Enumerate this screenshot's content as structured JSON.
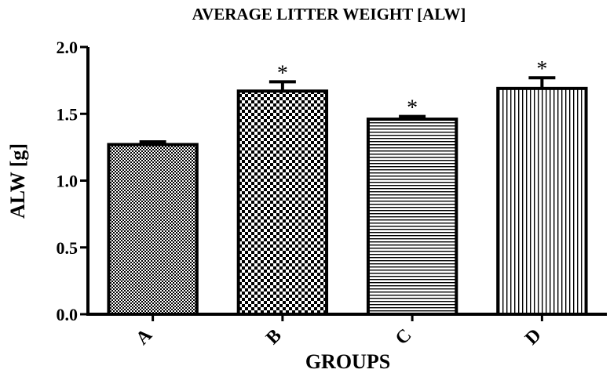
{
  "chart_data": {
    "type": "bar",
    "title": "AVERAGE LITTER WEIGHT [ALW]",
    "xlabel": "GROUPS",
    "ylabel": "ALW [g]",
    "categories": [
      "A",
      "B",
      "C",
      "D"
    ],
    "values": [
      1.27,
      1.67,
      1.46,
      1.69
    ],
    "error": [
      0.02,
      0.07,
      0.02,
      0.08
    ],
    "annotations": [
      "",
      "*",
      "*",
      "*"
    ],
    "patterns": [
      "fine-checker",
      "checker",
      "horizontal-lines",
      "vertical-lines"
    ],
    "ylim": [
      0,
      2.0
    ],
    "yticks": [
      0.0,
      0.5,
      1.0,
      1.5,
      2.0
    ],
    "ytick_labels": [
      "0.0",
      "0.5",
      "1.0",
      "1.5",
      "2.0"
    ],
    "grid": false,
    "legend": "none",
    "bar_color": "#000000",
    "background": "#ffffff"
  }
}
